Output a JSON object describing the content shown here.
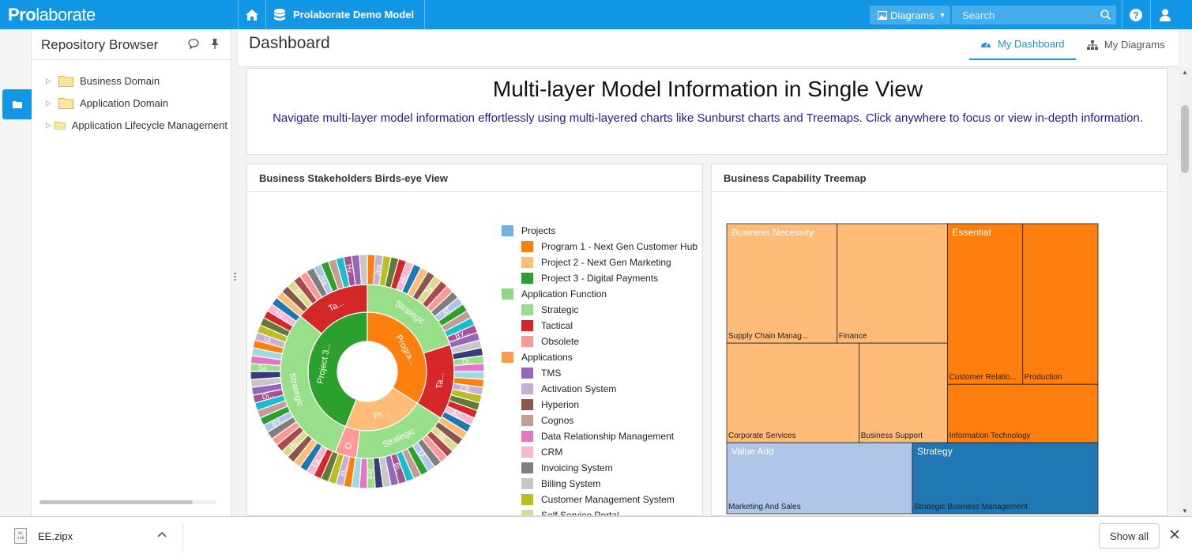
{
  "app": {
    "logo_bold": "Pro",
    "logo_light": "laborate",
    "model_name": "Prolaborate Demo Model"
  },
  "topbar": {
    "diagrams_label": "Diagrams",
    "search_placeholder": "Search"
  },
  "sidebar": {
    "title": "Repository Browser",
    "items": [
      {
        "label": "Business Domain"
      },
      {
        "label": "Application Domain"
      },
      {
        "label": "Application Lifecycle Management"
      }
    ]
  },
  "header": {
    "title": "Dashboard",
    "tabs": [
      {
        "label": "My Dashboard"
      },
      {
        "label": "My Diagrams"
      }
    ]
  },
  "banner": {
    "title": "Multi-layer Model Information in Single View",
    "subtitle": "Navigate multi-layer model information effortlessly using multi-layered charts like Sunburst charts and Treemaps. Click anywhere to focus or view in-depth information."
  },
  "sunburst_card": {
    "title": "Business Stakeholders Birds-eye View"
  },
  "treemap_card": {
    "title": "Business Capability Treemap"
  },
  "legend": [
    {
      "label": "Projects",
      "color": "#6fb1e0",
      "level": 0
    },
    {
      "label": "Program 1 - Next Gen Customer Hub",
      "color": "#ff7f0e",
      "level": 1
    },
    {
      "label": "Project 2 - Next Gen Marketing",
      "color": "#ffbb78",
      "level": 1
    },
    {
      "label": "Project 3 - Digital Payments",
      "color": "#2ca02c",
      "level": 1
    },
    {
      "label": "Application Function",
      "color": "#8fd68a",
      "level": 0
    },
    {
      "label": "Strategic",
      "color": "#98df8a",
      "level": 1
    },
    {
      "label": "Tactical",
      "color": "#d62728",
      "level": 1
    },
    {
      "label": "Obsolete",
      "color": "#ff9896",
      "level": 1
    },
    {
      "label": "Applications",
      "color": "#ff9a4d",
      "level": 0
    },
    {
      "label": "TMS",
      "color": "#9467bd",
      "level": 1
    },
    {
      "label": "Activation System",
      "color": "#c5b0d5",
      "level": 1
    },
    {
      "label": "Hyperion",
      "color": "#8c564b",
      "level": 1
    },
    {
      "label": "Cognos",
      "color": "#c49c94",
      "level": 1
    },
    {
      "label": "Data Relationship Management",
      "color": "#e377c2",
      "level": 1
    },
    {
      "label": "CRM",
      "color": "#f7b6d2",
      "level": 1
    },
    {
      "label": "Invoicing System",
      "color": "#7f7f7f",
      "level": 1
    },
    {
      "label": "Billing System",
      "color": "#c7c7c7",
      "level": 1
    },
    {
      "label": "Customer Management System",
      "color": "#bcbd22",
      "level": 1
    },
    {
      "label": "Self Service Portal",
      "color": "#dbdb8d",
      "level": 1
    }
  ],
  "chart_data": [
    {
      "type": "sunburst",
      "title": "Business Stakeholders Birds-eye View",
      "inner_ring": [
        {
          "label": "Progra...",
          "color": "#ff7f0e",
          "value": 34
        },
        {
          "label": "Pr...",
          "color": "#ffbb78",
          "value": 22
        },
        {
          "label": "Project 3...",
          "color": "#2ca02c",
          "value": 44
        }
      ],
      "middle_ring": [
        {
          "label": "Strategic",
          "color": "#98df8a",
          "value": 20
        },
        {
          "label": "Ta...",
          "color": "#d62728",
          "value": 14
        },
        {
          "label": "Strategic",
          "color": "#98df8a",
          "value": 18
        },
        {
          "label": "O...",
          "color": "#ff9896",
          "value": 4
        },
        {
          "label": "Strategic",
          "color": "#98df8a",
          "value": 30
        },
        {
          "label": "Ta...",
          "color": "#d62728",
          "value": 14
        }
      ],
      "outer_ring_segments": 92,
      "outer_ring_labels": [
        "Jira",
        "Hv...",
        "Ta",
        "AT...",
        "BY...",
        "DI...",
        "CB...",
        "AC...",
        "MI...",
        "Ui...",
        "Bi...",
        "Jira",
        "In...",
        "La...",
        "Hv...",
        "BY...",
        "Di...",
        "Se...",
        "Ui...",
        "Hv...",
        "Di..."
      ]
    },
    {
      "type": "treemap",
      "title": "Business Capability Treemap",
      "groups": [
        {
          "label": "Business Necessity",
          "color": "#ffbb78",
          "children": [
            {
              "label": "Supply Chain Manag...",
              "value": 6
            },
            {
              "label": "Finance",
              "value": 6
            },
            {
              "label": "Corporate Services",
              "value": 6
            },
            {
              "label": "Business Support",
              "value": 4
            }
          ]
        },
        {
          "label": "Essential",
          "color": "#ff7f0e",
          "children": [
            {
              "label": "Customer Relatio...",
              "value": 5.5
            },
            {
              "label": "Production",
              "value": 5.5
            },
            {
              "label": "Information Technology",
              "value": 4
            }
          ]
        },
        {
          "label": "Value Add",
          "color": "#aec7e8",
          "children": [
            {
              "label": "Marketing And Sales",
              "value": 6
            }
          ]
        },
        {
          "label": "Strategy",
          "color": "#1f77b4",
          "children": [
            {
              "label": "Strategic Business Management",
              "value": 6
            }
          ]
        }
      ]
    }
  ],
  "downloads": {
    "file": "EE.zipx",
    "show_all": "Show all"
  }
}
